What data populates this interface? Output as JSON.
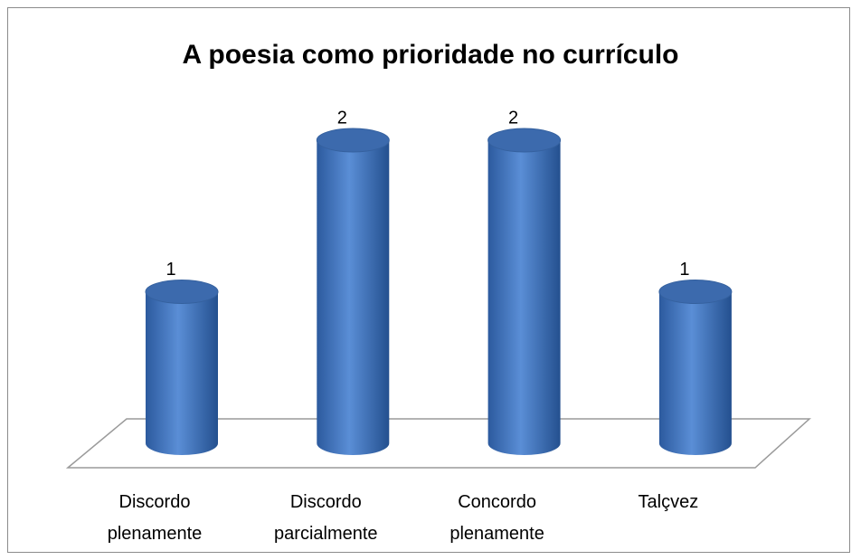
{
  "chart_data": {
    "type": "bar3d",
    "title": "A poesia como prioridade no currículo",
    "categories": [
      "Discordo plenamente",
      "Discordo parcialmente",
      "Concordo plenamente",
      "Talçvez"
    ],
    "values": [
      1,
      2,
      2,
      1
    ],
    "color": "#4a7ec8"
  }
}
